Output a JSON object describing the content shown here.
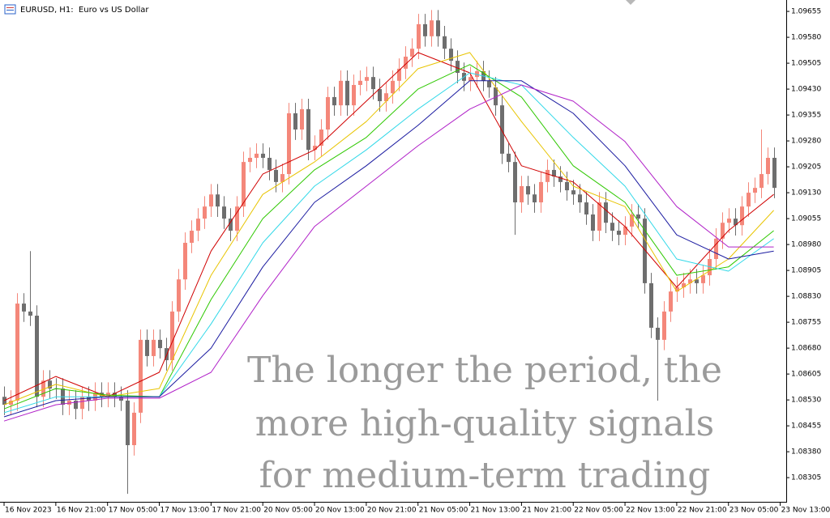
{
  "chart_data": {
    "type": "candlestick",
    "title": "EURUSD, H1:  Euro vs US Dollar",
    "annotation": [
      "The longer the period, the",
      "more high-quality signals",
      "for medium-term trading"
    ],
    "up_color": "#f4877a",
    "down_color": "#6e6e6e",
    "open": [
      1.08539,
      1.08516,
      1.08528,
      1.08809,
      1.08786,
      1.08774,
      1.08539,
      1.08586,
      1.08563,
      1.08563,
      1.08516,
      1.08528,
      1.08504,
      1.08539,
      1.08528,
      1.08551,
      1.08539,
      1.08551,
      1.08539,
      1.08528,
      1.08399,
      1.08493,
      1.08704,
      1.08657,
      1.08704,
      1.0868,
      1.08645,
      1.08786,
      1.08879,
      1.08985,
      1.0902,
      1.09055,
      1.0909,
      1.09125,
      1.0909,
      1.09055,
      1.0902,
      1.0909,
      1.09219,
      1.09231,
      1.09243,
      1.09231,
      1.09196,
      1.09161,
      1.09184,
      1.0936,
      1.09313,
      1.09372,
      1.09254,
      1.09266,
      1.09313,
      1.09407,
      1.09383,
      1.09454,
      1.09383,
      1.09442,
      1.09454,
      1.09465,
      1.0943,
      1.09395,
      1.09418,
      1.09454,
      1.09489,
      1.09524,
      1.09547,
      1.09618,
      1.09583,
      1.09629,
      1.09583,
      1.09547,
      1.09512,
      1.09477,
      1.09454,
      1.09465,
      1.09482,
      1.09454,
      1.09435,
      1.09383,
      1.09243,
      1.09219,
      1.09102,
      1.09149,
      1.09125,
      1.09102,
      1.09161,
      1.09196,
      1.09177,
      1.09161,
      1.09137,
      1.09125,
      1.09102,
      1.09067,
      1.0902,
      1.09102,
      1.09043,
      1.0902,
      1.09008,
      1.09032,
      1.09067,
      1.09055,
      1.08868,
      1.08739,
      1.08704,
      1.08786,
      1.08844,
      1.08856,
      1.08868,
      1.08879,
      1.08868,
      1.08891,
      1.08938,
      1.08997,
      1.09043,
      1.09055,
      1.09036,
      1.0909,
      1.0913,
      1.09144,
      1.09184,
      1.09231
    ],
    "high": [
      1.08569,
      1.08558,
      1.08839,
      1.08839,
      1.08961,
      1.08804,
      1.08616,
      1.08616,
      1.08593,
      1.08593,
      1.08558,
      1.08558,
      1.08569,
      1.08569,
      1.08581,
      1.08581,
      1.08581,
      1.08581,
      1.08569,
      1.08558,
      1.08523,
      1.08734,
      1.08734,
      1.08734,
      1.08734,
      1.0871,
      1.08816,
      1.08909,
      1.09015,
      1.0905,
      1.09085,
      1.0912,
      1.09155,
      1.09155,
      1.0912,
      1.09085,
      1.0912,
      1.09249,
      1.09261,
      1.09273,
      1.09273,
      1.09261,
      1.09226,
      1.09214,
      1.0939,
      1.0939,
      1.09402,
      1.09402,
      1.09296,
      1.09343,
      1.09437,
      1.09437,
      1.09484,
      1.09484,
      1.09472,
      1.09484,
      1.09495,
      1.09495,
      1.0946,
      1.09448,
      1.09484,
      1.09519,
      1.09554,
      1.09577,
      1.09648,
      1.09648,
      1.09659,
      1.09659,
      1.09613,
      1.09577,
      1.09542,
      1.09507,
      1.09495,
      1.09512,
      1.09512,
      1.09484,
      1.09465,
      1.09413,
      1.09273,
      1.09249,
      1.09179,
      1.09179,
      1.09155,
      1.09191,
      1.09226,
      1.09226,
      1.09207,
      1.09191,
      1.09167,
      1.09155,
      1.09132,
      1.09097,
      1.09132,
      1.09132,
      1.09073,
      1.0905,
      1.09062,
      1.09097,
      1.09097,
      1.09085,
      1.08898,
      1.08769,
      1.08816,
      1.08874,
      1.08886,
      1.08898,
      1.08909,
      1.08909,
      1.08921,
      1.08968,
      1.09027,
      1.09073,
      1.09085,
      1.09085,
      1.0912,
      1.0916,
      1.09174,
      1.09313,
      1.09261,
      1.09261
    ],
    "low": [
      1.08486,
      1.08486,
      1.08498,
      1.08756,
      1.08744,
      1.08509,
      1.08509,
      1.08533,
      1.08533,
      1.08486,
      1.08486,
      1.08474,
      1.08474,
      1.08498,
      1.08498,
      1.08509,
      1.08509,
      1.08509,
      1.08498,
      1.08258,
      1.08369,
      1.08463,
      1.08627,
      1.08627,
      1.0865,
      1.08615,
      1.08615,
      1.08756,
      1.08849,
      1.08955,
      1.0899,
      1.09025,
      1.0906,
      1.0906,
      1.09025,
      1.0899,
      1.0899,
      1.0906,
      1.09189,
      1.09201,
      1.09201,
      1.09166,
      1.09131,
      1.09131,
      1.09154,
      1.09283,
      1.09283,
      1.09224,
      1.09224,
      1.09236,
      1.09283,
      1.09353,
      1.09353,
      1.09353,
      1.09353,
      1.09412,
      1.09424,
      1.094,
      1.09365,
      1.09365,
      1.09388,
      1.09424,
      1.09459,
      1.09494,
      1.09517,
      1.09553,
      1.09553,
      1.09553,
      1.09517,
      1.09482,
      1.09447,
      1.09424,
      1.09424,
      1.09435,
      1.09424,
      1.09405,
      1.09353,
      1.09213,
      1.09189,
      1.09008,
      1.09072,
      1.09095,
      1.09072,
      1.09072,
      1.09131,
      1.09147,
      1.09131,
      1.09107,
      1.09095,
      1.09072,
      1.09037,
      1.0899,
      1.0899,
      1.09013,
      1.0899,
      1.08978,
      1.08978,
      1.09002,
      1.09025,
      1.08838,
      1.08709,
      1.08528,
      1.08674,
      1.08756,
      1.08814,
      1.08826,
      1.08838,
      1.08838,
      1.08838,
      1.08861,
      1.08908,
      1.08967,
      1.09013,
      1.09006,
      1.09006,
      1.0906,
      1.091,
      1.09114,
      1.09154,
      1.09114
    ],
    "close": [
      1.08516,
      1.08528,
      1.08809,
      1.08786,
      1.08774,
      1.08539,
      1.08586,
      1.08563,
      1.08563,
      1.08516,
      1.08528,
      1.08504,
      1.08539,
      1.08528,
      1.08551,
      1.08539,
      1.08551,
      1.08539,
      1.08528,
      1.08399,
      1.08493,
      1.08704,
      1.08657,
      1.08704,
      1.0868,
      1.08645,
      1.08786,
      1.08879,
      1.08985,
      1.0902,
      1.09055,
      1.0909,
      1.09125,
      1.0909,
      1.09055,
      1.0902,
      1.0909,
      1.09219,
      1.09231,
      1.09243,
      1.09231,
      1.09196,
      1.09161,
      1.09184,
      1.0936,
      1.09313,
      1.09372,
      1.09254,
      1.09266,
      1.09313,
      1.09407,
      1.09383,
      1.09454,
      1.09383,
      1.09442,
      1.09454,
      1.09465,
      1.0943,
      1.09395,
      1.09418,
      1.09454,
      1.09489,
      1.09524,
      1.09547,
      1.09618,
      1.09583,
      1.09629,
      1.09583,
      1.09547,
      1.09512,
      1.09477,
      1.09454,
      1.09465,
      1.09482,
      1.09454,
      1.09435,
      1.09383,
      1.09243,
      1.09219,
      1.09102,
      1.09149,
      1.09125,
      1.09102,
      1.09161,
      1.09196,
      1.09177,
      1.09161,
      1.09137,
      1.09125,
      1.09102,
      1.09067,
      1.0902,
      1.09102,
      1.09043,
      1.0902,
      1.09008,
      1.09032,
      1.09067,
      1.09055,
      1.08868,
      1.08739,
      1.08704,
      1.08786,
      1.08844,
      1.08856,
      1.08868,
      1.08879,
      1.08868,
      1.08891,
      1.08938,
      1.08997,
      1.09043,
      1.09055,
      1.09036,
      1.0909,
      1.0913,
      1.09144,
      1.09184,
      1.09231,
      1.09144
    ],
    "series": [
      {
        "color": "#d00000",
        "x": [
          0,
          8,
          16,
          24,
          32,
          40,
          48,
          56,
          64,
          72,
          80,
          88,
          96,
          104,
          112,
          119
        ],
        "values": [
          1.08528,
          1.08598,
          1.08539,
          1.0861,
          1.08961,
          1.09184,
          1.09254,
          1.09395,
          1.09536,
          1.09477,
          1.09208,
          1.09161,
          1.09032,
          1.08856,
          1.0902,
          1.09125
        ]
      },
      {
        "color": "#e8c400",
        "x": [
          0,
          8,
          16,
          24,
          32,
          40,
          48,
          56,
          64,
          72,
          80,
          88,
          96,
          104,
          112,
          119
        ],
        "values": [
          1.08516,
          1.08575,
          1.08539,
          1.08563,
          1.08891,
          1.09125,
          1.09219,
          1.09336,
          1.09489,
          1.09536,
          1.09336,
          1.09149,
          1.0909,
          1.08844,
          1.08938,
          1.09079
        ]
      },
      {
        "color": "#2ec800",
        "x": [
          0,
          8,
          16,
          24,
          32,
          40,
          48,
          56,
          64,
          72,
          80,
          88,
          96,
          104,
          112,
          119
        ],
        "values": [
          1.08504,
          1.08563,
          1.08544,
          1.08539,
          1.08821,
          1.09055,
          1.09196,
          1.0929,
          1.0943,
          1.09501,
          1.09407,
          1.09208,
          1.09102,
          1.08891,
          1.08915,
          1.0902
        ]
      },
      {
        "color": "#30d8e8",
        "x": [
          0,
          8,
          16,
          24,
          32,
          40,
          48,
          56,
          64,
          72,
          80,
          88,
          96,
          104,
          112,
          119
        ],
        "values": [
          1.08493,
          1.08539,
          1.08539,
          1.08539,
          1.0875,
          1.08985,
          1.09149,
          1.09254,
          1.09372,
          1.09477,
          1.09442,
          1.0929,
          1.09149,
          1.08938,
          1.08903,
          1.08997
        ]
      },
      {
        "color": "#1a1aa0",
        "x": [
          0,
          8,
          16,
          24,
          32,
          40,
          48,
          56,
          64,
          72,
          80,
          88,
          96,
          104,
          112,
          119
        ],
        "values": [
          1.08481,
          1.08528,
          1.08539,
          1.08539,
          1.0868,
          1.08915,
          1.09102,
          1.09208,
          1.09325,
          1.09454,
          1.09454,
          1.0936,
          1.09208,
          1.09008,
          1.08938,
          1.08961
        ]
      },
      {
        "color": "#b020c8",
        "x": [
          0,
          8,
          16,
          24,
          32,
          40,
          48,
          56,
          64,
          72,
          80,
          88,
          96,
          104,
          112,
          119
        ],
        "values": [
          1.08469,
          1.08516,
          1.08535,
          1.08535,
          1.0861,
          1.08832,
          1.09032,
          1.09149,
          1.09266,
          1.09372,
          1.09442,
          1.09395,
          1.09278,
          1.0909,
          1.08973,
          1.08973
        ]
      }
    ],
    "xlim": [
      -0.63,
      120.93
    ],
    "xticks": [
      {
        "value": 0,
        "label": "16 Nov 2023"
      },
      {
        "value": 8,
        "label": "16 Nov 21:00"
      },
      {
        "value": 16,
        "label": "17 Nov 05:00"
      },
      {
        "value": 24,
        "label": "17 Nov 13:00"
      },
      {
        "value": 32,
        "label": "17 Nov 21:00"
      },
      {
        "value": 40,
        "label": "20 Nov 05:00"
      },
      {
        "value": 48,
        "label": "20 Nov 13:00"
      },
      {
        "value": 56,
        "label": "20 Nov 21:00"
      },
      {
        "value": 64,
        "label": "21 Nov 05:00"
      },
      {
        "value": 72,
        "label": "21 Nov 13:00"
      },
      {
        "value": 80,
        "label": "21 Nov 21:00"
      },
      {
        "value": 88,
        "label": "22 Nov 05:00"
      },
      {
        "value": 96,
        "label": "22 Nov 13:00"
      },
      {
        "value": 104,
        "label": "22 Nov 21:00"
      },
      {
        "value": 112,
        "label": "23 Nov 05:00"
      },
      {
        "value": 120,
        "label": "23 Nov 13:00"
      }
    ],
    "ylim": [
      1.08235,
      1.09688
    ],
    "yticks": [
      {
        "value": 1.09655,
        "label": "1.09655"
      },
      {
        "value": 1.0958,
        "label": "1.09580"
      },
      {
        "value": 1.09505,
        "label": "1.09505"
      },
      {
        "value": 1.0943,
        "label": "1.09430"
      },
      {
        "value": 1.09355,
        "label": "1.09355"
      },
      {
        "value": 1.0928,
        "label": "1.09280"
      },
      {
        "value": 1.09205,
        "label": "1.09205"
      },
      {
        "value": 1.0913,
        "label": "1.09130"
      },
      {
        "value": 1.09055,
        "label": "1.09055"
      },
      {
        "value": 1.0898,
        "label": "1.08980"
      },
      {
        "value": 1.08905,
        "label": "1.08905"
      },
      {
        "value": 1.0883,
        "label": "1.08830"
      },
      {
        "value": 1.08755,
        "label": "1.08755"
      },
      {
        "value": 1.0868,
        "label": "1.08680"
      },
      {
        "value": 1.08605,
        "label": "1.08605"
      },
      {
        "value": 1.0853,
        "label": "1.08530"
      },
      {
        "value": 1.08455,
        "label": "1.08455"
      },
      {
        "value": 1.0838,
        "label": "1.08380"
      },
      {
        "value": 1.08305,
        "label": "1.08305"
      }
    ]
  }
}
